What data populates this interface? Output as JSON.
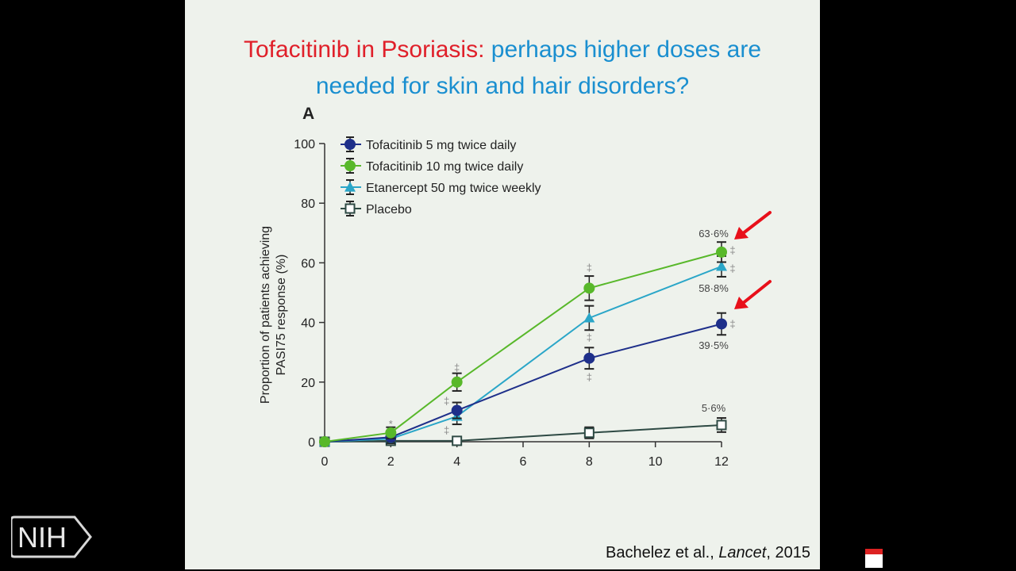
{
  "slide": {
    "title_part1": "Tofacitinib in Psoriasis:",
    "title_part2": "perhaps higher doses are",
    "title_line2": "needed for skin and hair disorders?",
    "panel_letter": "A",
    "citation_prefix": "Bachelez et al., ",
    "citation_journal": "Lancet",
    "citation_suffix": ", 2015"
  },
  "branding": {
    "logo_text": "NIH"
  },
  "colors": {
    "title_red": "#e0202a",
    "title_blue": "#1a8fd0",
    "tofa5": "#1e2f8a",
    "tofa10": "#58b82a",
    "etanercept": "#2aa6c8",
    "placebo": "#2e4a44",
    "arrow": "#e8101a"
  },
  "chart_data": {
    "type": "line",
    "xlabel": "",
    "ylabel": "Proportion of patients achieving PASI75 response (%)",
    "x": [
      0,
      2,
      4,
      8,
      12
    ],
    "x_ticks": [
      0,
      2,
      4,
      6,
      8,
      10,
      12
    ],
    "y_ticks": [
      0,
      20,
      40,
      60,
      80,
      100
    ],
    "xlim": [
      0,
      12
    ],
    "ylim": [
      0,
      100
    ],
    "grid": false,
    "legend_position": "top-left",
    "series": [
      {
        "name": "Tofacitinib 5 mg twice daily",
        "values": [
          0,
          1.5,
          10.5,
          28,
          39.5
        ],
        "errors": [
          0,
          0.6,
          1.6,
          2.5,
          2.6
        ],
        "marker": "circle",
        "color": "#1e2f8a"
      },
      {
        "name": "Tofacitinib 10 mg twice daily",
        "values": [
          0,
          3,
          20,
          51.5,
          63.6
        ],
        "errors": [
          0,
          0.8,
          1.9,
          3,
          2.3
        ],
        "marker": "circle",
        "color": "#58b82a"
      },
      {
        "name": "Etanercept 50 mg twice weekly",
        "values": [
          0,
          1,
          8.5,
          41.5,
          58.8
        ],
        "errors": [
          0,
          0.5,
          1.6,
          3,
          2.4
        ],
        "marker": "triangle",
        "color": "#2aa6c8"
      },
      {
        "name": "Placebo",
        "values": [
          0,
          0.3,
          0.3,
          3,
          5.6
        ],
        "errors": [
          0,
          0.3,
          0.3,
          0.8,
          1.3
        ],
        "marker": "square",
        "color": "#2e4a44"
      }
    ],
    "annotations": [
      {
        "text": "63·6%",
        "x": 12,
        "y": 63.6
      },
      {
        "text": "58·8%",
        "x": 12,
        "y": 58.8
      },
      {
        "text": "39·5%",
        "x": 12,
        "y": 39.5
      },
      {
        "text": "5·6%",
        "x": 12,
        "y": 5.6
      }
    ],
    "significance_marks": [
      {
        "text": "*",
        "x": 2
      },
      {
        "text": "‡",
        "x": 4
      },
      {
        "text": "‡",
        "x": 8
      },
      {
        "text": "‡",
        "x": 12
      }
    ]
  }
}
